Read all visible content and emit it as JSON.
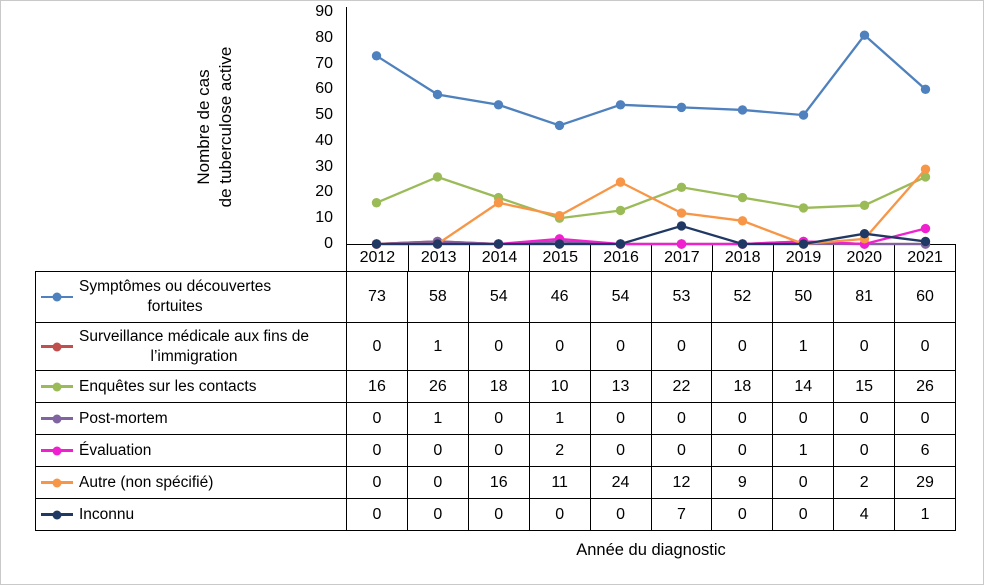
{
  "chart_data": {
    "type": "line",
    "title": "",
    "xlabel": "Année du diagnostic",
    "ylabel": "Nombre de cas de tuberculose active",
    "ylabel_lines": [
      "Nombre de cas",
      "de tuberculose active"
    ],
    "categories": [
      "2012",
      "2013",
      "2014",
      "2015",
      "2016",
      "2017",
      "2018",
      "2019",
      "2020",
      "2021"
    ],
    "ylim": [
      0,
      90
    ],
    "yticks": [
      0,
      10,
      20,
      30,
      40,
      50,
      60,
      70,
      80,
      90
    ],
    "grid": false,
    "legend_position": "table-left",
    "series": [
      {
        "name": "Symptômes ou découvertes fortuites",
        "label_lines": [
          "Symptômes ou découvertes",
          "fortuites"
        ],
        "color": "#4e81bd",
        "values": [
          73,
          58,
          54,
          46,
          54,
          53,
          52,
          50,
          81,
          60
        ]
      },
      {
        "name": "Surveillance médicale aux fins de l’immigration",
        "label_lines": [
          "Surveillance médicale aux fins de",
          "l’immigration"
        ],
        "color": "#c0504d",
        "values": [
          0,
          1,
          0,
          0,
          0,
          0,
          0,
          1,
          0,
          0
        ]
      },
      {
        "name": "Enquêtes sur les contacts",
        "label_lines": [
          "Enquêtes sur les contacts"
        ],
        "color": "#9bbb59",
        "values": [
          16,
          26,
          18,
          10,
          13,
          22,
          18,
          14,
          15,
          26
        ]
      },
      {
        "name": "Post-mortem",
        "label_lines": [
          "Post-mortem"
        ],
        "color": "#8064a2",
        "values": [
          0,
          1,
          0,
          1,
          0,
          0,
          0,
          0,
          0,
          0
        ]
      },
      {
        "name": "Évaluation",
        "label_lines": [
          "Évaluation"
        ],
        "color": "#f020d0",
        "values": [
          0,
          0,
          0,
          2,
          0,
          0,
          0,
          1,
          0,
          6
        ]
      },
      {
        "name": "Autre (non spécifié)",
        "label_lines": [
          "Autre (non spécifié)"
        ],
        "color": "#f79646",
        "values": [
          0,
          0,
          16,
          11,
          24,
          12,
          9,
          0,
          2,
          29
        ]
      },
      {
        "name": "Inconnu",
        "label_lines": [
          "Inconnu"
        ],
        "color": "#203864",
        "values": [
          0,
          0,
          0,
          0,
          0,
          7,
          0,
          0,
          4,
          1
        ]
      }
    ]
  }
}
